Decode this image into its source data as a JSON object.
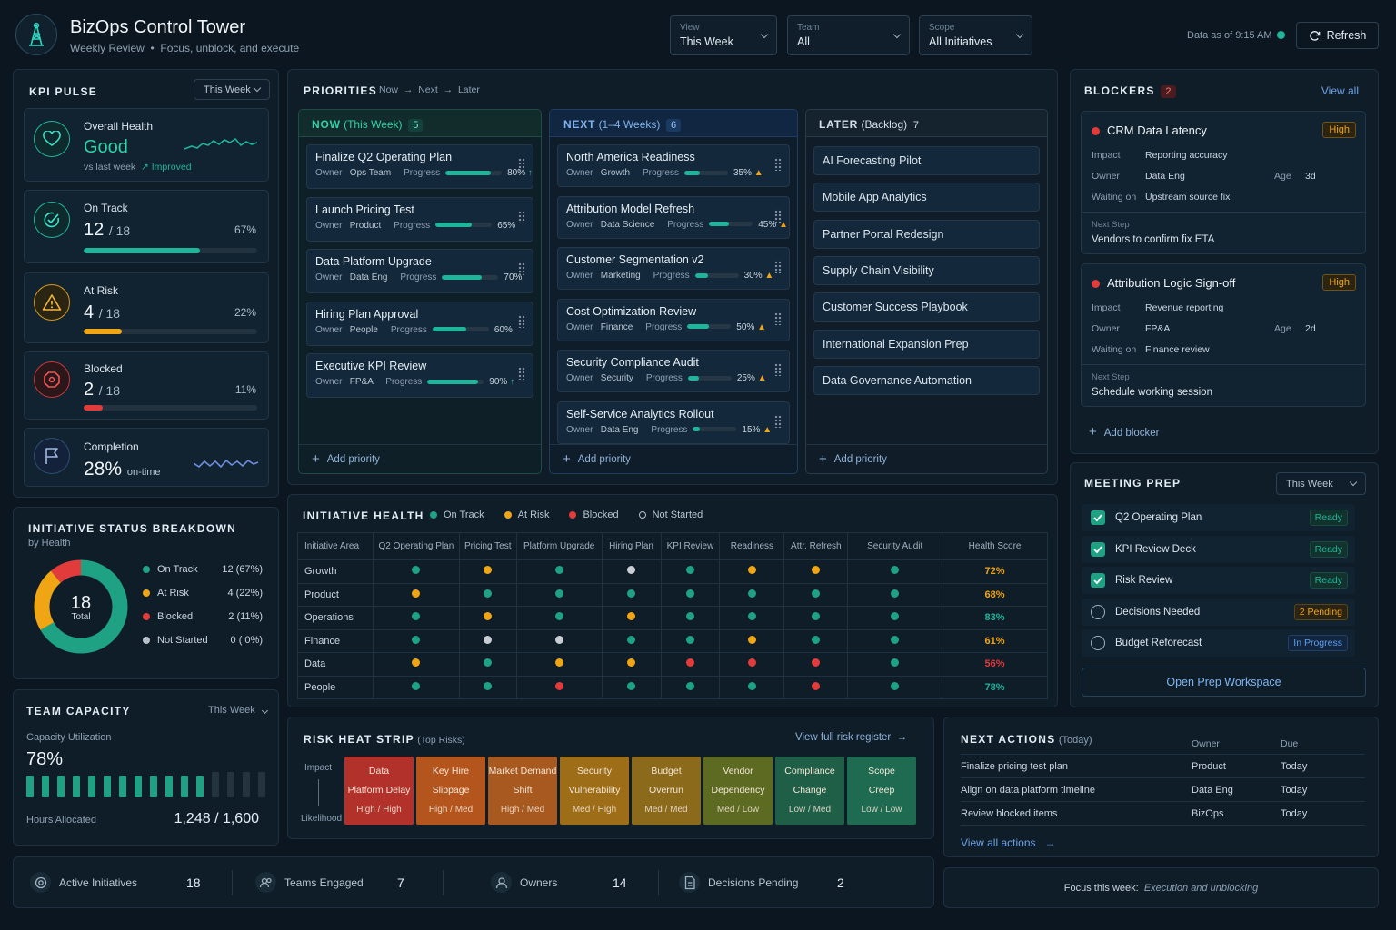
{
  "header": {
    "title": "BizOps Control Tower",
    "subtitle_a": "Weekly Review",
    "subtitle_b": "Focus, unblock, and execute",
    "filters": [
      {
        "label": "View",
        "value": "This Week"
      },
      {
        "label": "Team",
        "value": "All"
      },
      {
        "label": "Scope",
        "value": "All Initiatives"
      }
    ],
    "data_as_of": "Data as of 9:15 AM",
    "refresh": "Refresh"
  },
  "kpi": {
    "title": "KPI PULSE",
    "period": "This Week",
    "health": {
      "label": "Overall Health",
      "value": "Good",
      "vs": "vs last week",
      "trend": "Improved"
    },
    "cards": [
      {
        "label": "On Track",
        "value": "12",
        "total": "/ 18",
        "pct": "67%",
        "fill": 0.67,
        "color": "#1fb59a"
      },
      {
        "label": "At Risk",
        "value": "4",
        "total": "/ 18",
        "pct": "22%",
        "fill": 0.22,
        "color": "#f0a514"
      },
      {
        "label": "Blocked",
        "value": "2",
        "total": "/ 18",
        "pct": "11%",
        "fill": 0.11,
        "color": "#e23b3b"
      }
    ],
    "completion": {
      "label": "Completion",
      "value": "28%",
      "suffix": "on-time"
    }
  },
  "breakdown": {
    "title": "INITIATIVE STATUS BREAKDOWN",
    "subtitle": "by Health",
    "total": "18",
    "total_label": "Total",
    "items": [
      {
        "label": "On Track",
        "value": "12 (67%)",
        "n": 12,
        "color": "#1fa184"
      },
      {
        "label": "At Risk",
        "value": "4 (22%)",
        "n": 4,
        "color": "#f0a514"
      },
      {
        "label": "Blocked",
        "value": "2 (11%)",
        "n": 2,
        "color": "#e23b3b"
      },
      {
        "label": "Not Started",
        "value": "0 ( 0%)",
        "n": 0,
        "color": "#b7c0c8"
      }
    ]
  },
  "capacity": {
    "title": "TEAM CAPACITY",
    "period": "This Week",
    "util_label": "Capacity Utilization",
    "util": "78%",
    "hours_label": "Hours Allocated",
    "hours": "1,248 / 1,600",
    "bars_filled": 12,
    "bars_total": 16
  },
  "priorities": {
    "title": "PRIORITIES",
    "flow": [
      "Now",
      "Next",
      "Later"
    ],
    "add": "Add priority",
    "now": {
      "label": "NOW",
      "sub": "(This Week)",
      "count": "5",
      "items": [
        {
          "name": "Finalize Q2 Operating Plan",
          "owner": "Ops Team",
          "pct": "80%",
          "p": 0.8,
          "arrow": "↑",
          "ac": "#1fb59a"
        },
        {
          "name": "Launch Pricing Test",
          "owner": "Product",
          "pct": "65%",
          "p": 0.65,
          "arrow": "",
          "ac": ""
        },
        {
          "name": "Data Platform Upgrade",
          "owner": "Data Eng",
          "pct": "70%",
          "p": 0.7,
          "arrow": "",
          "ac": ""
        },
        {
          "name": "Hiring Plan Approval",
          "owner": "People",
          "pct": "60%",
          "p": 0.6,
          "arrow": "",
          "ac": ""
        },
        {
          "name": "Executive KPI Review",
          "owner": "FP&A",
          "pct": "90%",
          "p": 0.9,
          "arrow": "↑",
          "ac": "#1fb59a"
        }
      ]
    },
    "next": {
      "label": "NEXT",
      "sub": "(1–4 Weeks)",
      "count": "6",
      "items": [
        {
          "name": "North America Readiness",
          "owner": "Growth",
          "pct": "35%",
          "p": 0.35,
          "arrow": "▲",
          "ac": "#f0a514"
        },
        {
          "name": "Attribution Model Refresh",
          "owner": "Data Science",
          "pct": "45%",
          "p": 0.45,
          "arrow": "▲",
          "ac": "#f0a514"
        },
        {
          "name": "Customer Segmentation v2",
          "owner": "Marketing",
          "pct": "30%",
          "p": 0.3,
          "arrow": "▲",
          "ac": "#f0a514"
        },
        {
          "name": "Cost Optimization Review",
          "owner": "Finance",
          "pct": "50%",
          "p": 0.5,
          "arrow": "▲",
          "ac": "#f0a514"
        },
        {
          "name": "Security Compliance Audit",
          "owner": "Security",
          "pct": "25%",
          "p": 0.25,
          "arrow": "▲",
          "ac": "#f0a514"
        },
        {
          "name": "Self-Service Analytics Rollout",
          "owner": "Data Eng",
          "pct": "15%",
          "p": 0.15,
          "arrow": "▲",
          "ac": "#f0a514"
        }
      ]
    },
    "later": {
      "label": "LATER",
      "sub": "(Backlog)",
      "count": "7",
      "items": [
        "AI Forecasting Pilot",
        "Mobile App Analytics",
        "Partner Portal Redesign",
        "Supply Chain Visibility",
        "Customer Success Playbook",
        "International Expansion Prep",
        "Data Governance Automation"
      ]
    },
    "owner_label": "Owner",
    "progress_label": "Progress"
  },
  "health": {
    "title": "INITIATIVE HEALTH",
    "legend": [
      {
        "label": "On Track",
        "color": "#1fa184"
      },
      {
        "label": "At Risk",
        "color": "#f0a514"
      },
      {
        "label": "Blocked",
        "color": "#e23b3b"
      },
      {
        "label": "Not Started",
        "color": "hollow"
      }
    ],
    "columns": [
      "Initiative Area",
      "Q2 Operating Plan",
      "Pricing Test",
      "Platform Upgrade",
      "Hiring Plan",
      "KPI Review",
      "Readiness",
      "Attr. Refresh",
      "Security Audit",
      "Health Score"
    ],
    "rows": [
      {
        "area": "Growth",
        "s": [
          "g",
          "y",
          "g",
          "w",
          "g",
          "y",
          "y",
          "g"
        ],
        "score": "72%",
        "sc": "#f0a514"
      },
      {
        "area": "Product",
        "s": [
          "y",
          "g",
          "g",
          "g",
          "g",
          "g",
          "g",
          "g"
        ],
        "score": "68%",
        "sc": "#f0a514"
      },
      {
        "area": "Operations",
        "s": [
          "g",
          "y",
          "g",
          "y",
          "g",
          "g",
          "g",
          "g"
        ],
        "score": "83%",
        "sc": "#1fb59a"
      },
      {
        "area": "Finance",
        "s": [
          "g",
          "w",
          "w",
          "g",
          "g",
          "y",
          "g",
          "g"
        ],
        "score": "61%",
        "sc": "#f0a514"
      },
      {
        "area": "Data",
        "s": [
          "y",
          "g",
          "y",
          "y",
          "r",
          "r",
          "r",
          "g"
        ],
        "score": "56%",
        "sc": "#e23b3b"
      },
      {
        "area": "People",
        "s": [
          "g",
          "g",
          "r",
          "g",
          "g",
          "g",
          "r",
          "g"
        ],
        "score": "78%",
        "sc": "#1fb59a"
      }
    ]
  },
  "risk": {
    "title": "RISK HEAT STRIP",
    "sub": "(Top Risks)",
    "link": "View full risk register",
    "impact": "Impact",
    "likelihood": "Likelihood",
    "items": [
      {
        "l1": "Data",
        "l2": "Platform Delay",
        "lvl": "High / High",
        "bg": "#b3312b"
      },
      {
        "l1": "Key Hire",
        "l2": "Slippage",
        "lvl": "High / Med",
        "bg": "#b5551e"
      },
      {
        "l1": "Market Demand",
        "l2": "Shift",
        "lvl": "High / Med",
        "bg": "#a8591f"
      },
      {
        "l1": "Security",
        "l2": "Vulnerability",
        "lvl": "Med / High",
        "bg": "#9e6d18"
      },
      {
        "l1": "Budget",
        "l2": "Overrun",
        "lvl": "Med / Med",
        "bg": "#8b6a1c"
      },
      {
        "l1": "Vendor",
        "l2": "Dependency",
        "lvl": "Med / Low",
        "bg": "#5d6a22"
      },
      {
        "l1": "Compliance",
        "l2": "Change",
        "lvl": "Low / Med",
        "bg": "#1f5f48"
      },
      {
        "l1": "Scope",
        "l2": "Creep",
        "lvl": "Low / Low",
        "bg": "#1e6b52"
      }
    ]
  },
  "blockers": {
    "title": "BLOCKERS",
    "count": "2",
    "view_all": "View all",
    "add": "Add blocker",
    "labels": {
      "impact": "Impact",
      "owner": "Owner",
      "waiting": "Waiting on",
      "age": "Age",
      "next": "Next Step"
    },
    "items": [
      {
        "name": "CRM Data Latency",
        "sev": "High",
        "impact": "Reporting accuracy",
        "owner": "Data Eng",
        "age": "3d",
        "waiting": "Upstream source fix",
        "next": "Vendors to confirm fix ETA"
      },
      {
        "name": "Attribution Logic Sign-off",
        "sev": "High",
        "impact": "Revenue reporting",
        "owner": "FP&A",
        "age": "2d",
        "waiting": "Finance review",
        "next": "Schedule working session"
      }
    ]
  },
  "meeting": {
    "title": "MEETING PREP",
    "period": "This Week",
    "open": "Open Prep Workspace",
    "items": [
      {
        "label": "Q2 Operating Plan",
        "checked": true,
        "status": "Ready",
        "kind": "ready"
      },
      {
        "label": "KPI Review Deck",
        "checked": true,
        "status": "Ready",
        "kind": "ready"
      },
      {
        "label": "Risk Review",
        "checked": true,
        "status": "Ready",
        "kind": "ready"
      },
      {
        "label": "Decisions Needed",
        "checked": false,
        "status": "2 Pending",
        "kind": "pending"
      },
      {
        "label": "Budget Reforecast",
        "checked": false,
        "status": "In Progress",
        "kind": "progress"
      }
    ]
  },
  "actions": {
    "title": "NEXT ACTIONS",
    "sub": "(Today)",
    "col_owner": "Owner",
    "col_due": "Due",
    "view_all": "View all actions",
    "items": [
      {
        "task": "Finalize pricing test plan",
        "owner": "Product",
        "due": "Today"
      },
      {
        "task": "Align on data platform timeline",
        "owner": "Data Eng",
        "due": "Today"
      },
      {
        "task": "Review blocked items",
        "owner": "BizOps",
        "due": "Today"
      }
    ]
  },
  "footer": {
    "stats": [
      {
        "label": "Active Initiatives",
        "value": "18",
        "icon": "gear-icon"
      },
      {
        "label": "Teams Engaged",
        "value": "7",
        "icon": "users-icon"
      },
      {
        "label": "Owners",
        "value": "14",
        "icon": "user-icon"
      },
      {
        "label": "Decisions Pending",
        "value": "2",
        "icon": "document-icon"
      }
    ],
    "focus_label": "Focus this week:",
    "focus_value": "Execution and unblocking"
  }
}
